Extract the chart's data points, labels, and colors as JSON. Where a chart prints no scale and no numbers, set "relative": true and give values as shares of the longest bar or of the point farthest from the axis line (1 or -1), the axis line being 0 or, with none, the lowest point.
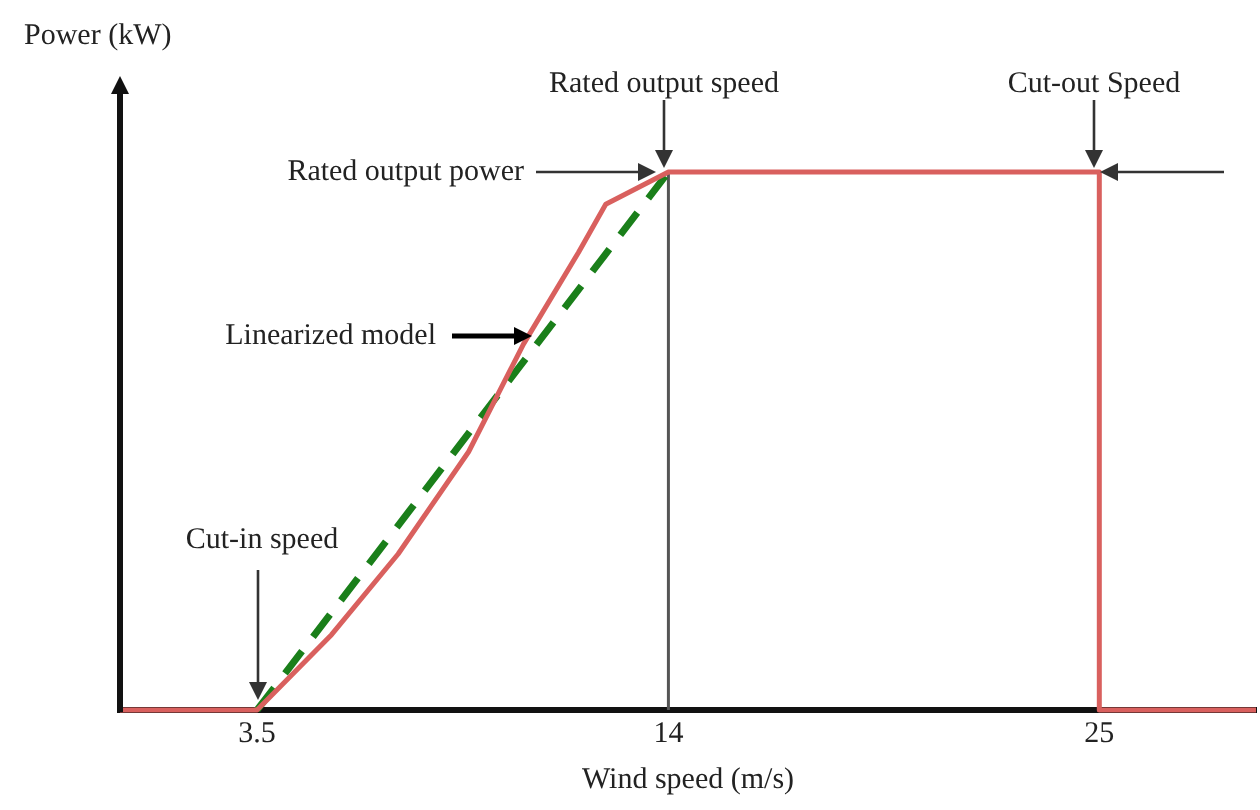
{
  "chart_data": {
    "type": "line",
    "relative": true,
    "ylabel": "Power (kW)",
    "xlabel": "Wind speed (m/s)",
    "xlim": [
      0,
      29
    ],
    "xticks": [
      3.5,
      14,
      25
    ],
    "grid": false,
    "legend": false,
    "marker": "none",
    "series": [
      {
        "color": "#d9605e",
        "line_style": "solid",
        "x": [
          0,
          3.5,
          5.4,
          7.1,
          8.9,
          10.3,
          11.7,
          12.4,
          14,
          15,
          25,
          25,
          29
        ],
        "values": [
          0,
          0,
          0.14,
          0.29,
          0.48,
          0.68,
          0.85,
          0.94,
          1,
          1,
          1,
          0,
          0
        ]
      },
      {
        "color": "#1a7f1a",
        "line_style": "dashed",
        "x": [
          3.5,
          14
        ],
        "values": [
          0,
          1
        ]
      }
    ],
    "ref_lines": [
      {
        "axis": "x",
        "value": 14,
        "color": "#555555"
      }
    ],
    "annotations": [
      "Rated output speed",
      "Cut-out Speed",
      "Rated output power",
      "Linearized model",
      "Cut-in speed"
    ]
  }
}
